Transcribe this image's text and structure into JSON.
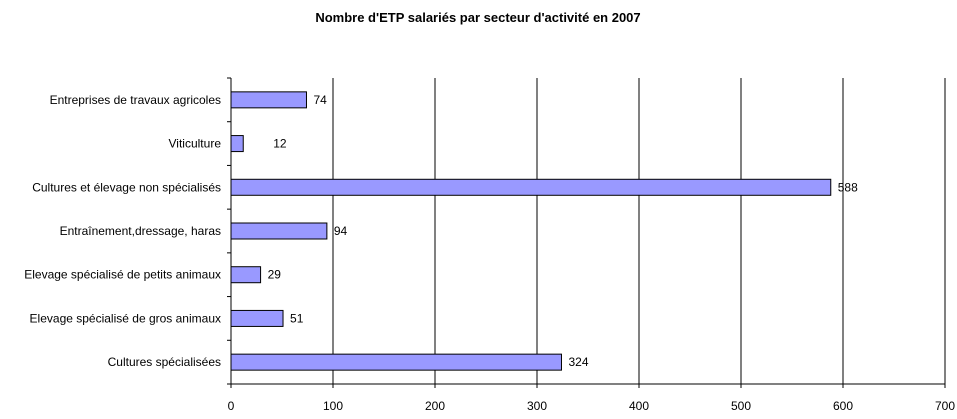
{
  "chart_data": {
    "type": "bar",
    "orientation": "horizontal",
    "title": "Nombre d'ETP salariés par secteur d'activité en 2007",
    "xlabel": "",
    "ylabel": "",
    "categories": [
      "Entreprises de travaux agricoles",
      "Viticulture",
      "Cultures et élevage non spécialisés",
      "Entraînement,dressage, haras",
      "Elevage spécialisé de petits animaux",
      "Elevage spécialisé de gros animaux",
      "Cultures spécialisées"
    ],
    "values": [
      74,
      12,
      588,
      94,
      29,
      51,
      324
    ],
    "data_labels": [
      "74",
      "12",
      "588",
      "94",
      "29",
      "51",
      "324"
    ],
    "xlim": [
      0,
      700
    ],
    "xticks": [
      0,
      100,
      200,
      300,
      400,
      500,
      600,
      700
    ],
    "xtick_labels": [
      "0",
      "100",
      "200",
      "300",
      "400",
      "500",
      "600",
      "700"
    ],
    "grid": "vertical",
    "legend": "none",
    "colors": {
      "bar_fill": "#9999ff",
      "bar_stroke": "#000000",
      "grid": "#000000"
    }
  }
}
